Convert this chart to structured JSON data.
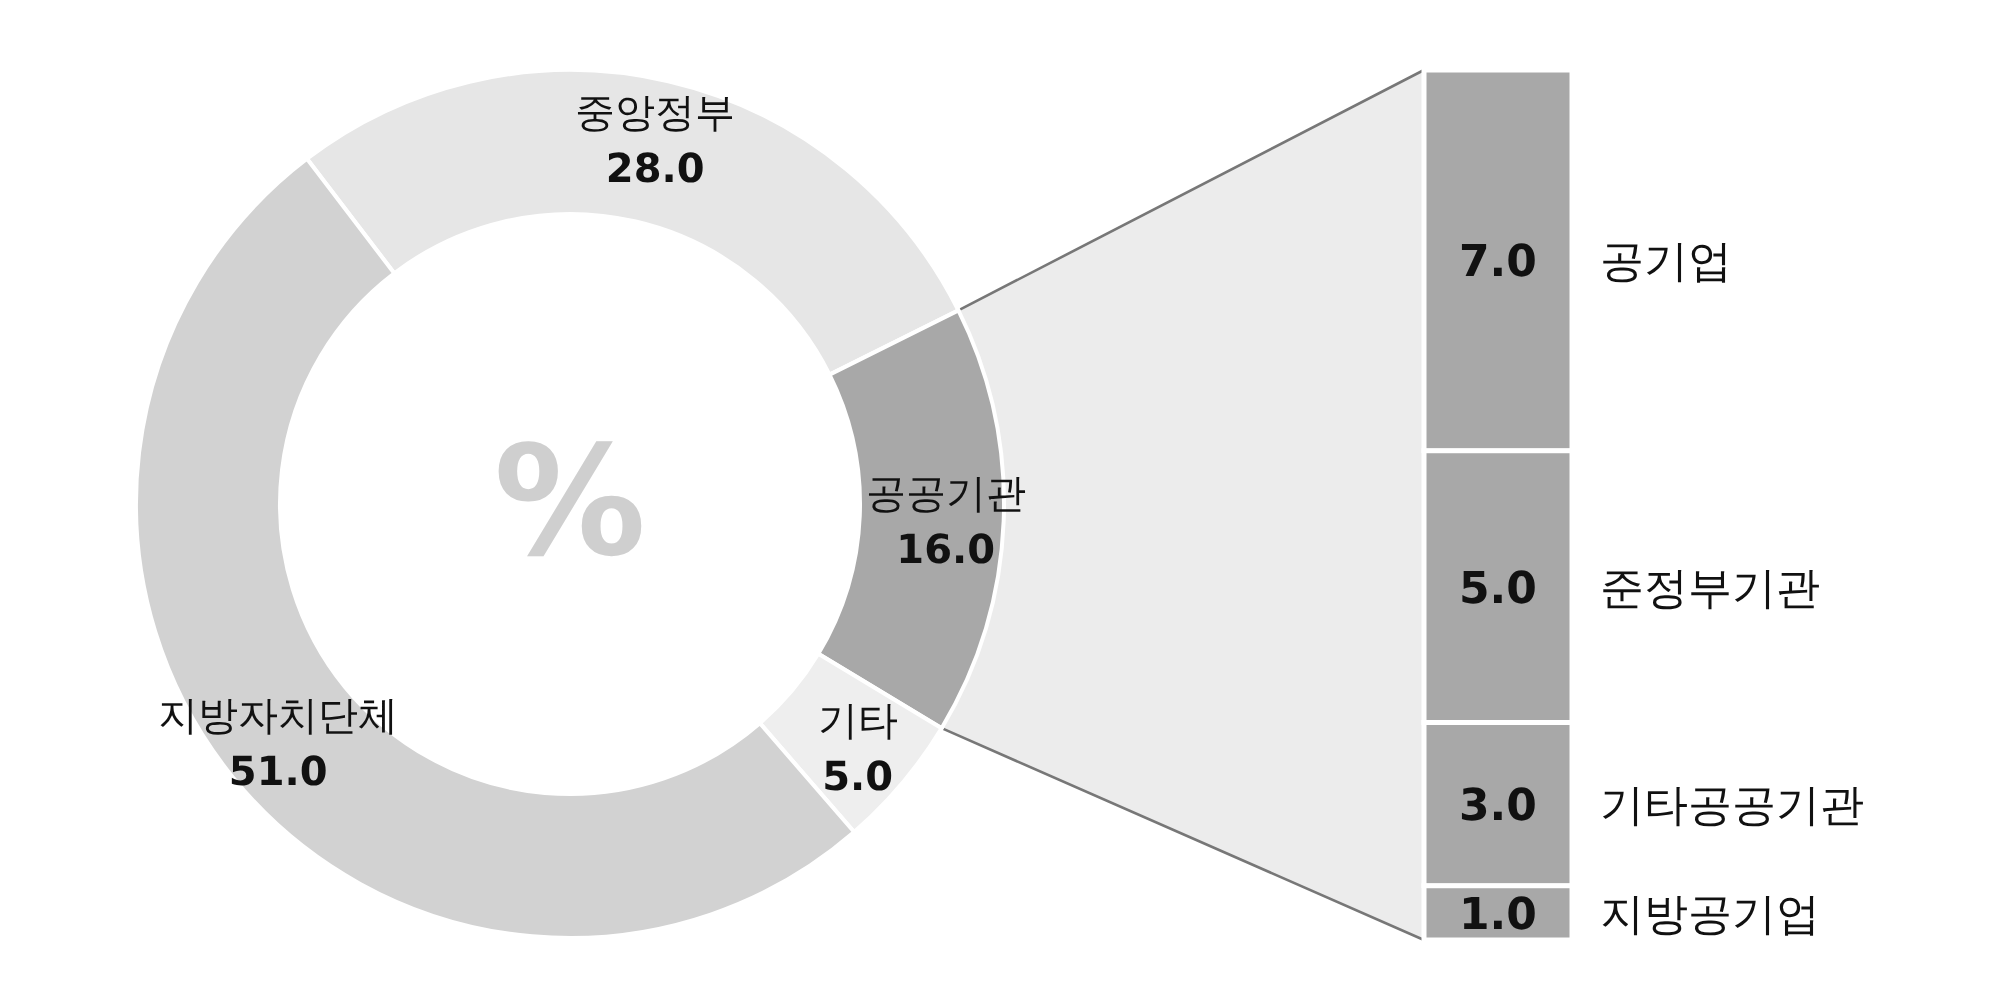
{
  "chart_data": [
    {
      "type": "donut",
      "categories": [
        "중앙정부",
        "공공기관",
        "기타",
        "지방자치단체"
      ],
      "values": [
        28.0,
        16.0,
        5.0,
        51.0
      ],
      "value_labels": [
        "28.0",
        "16.0",
        "5.0",
        "51.0"
      ],
      "colors": [
        "#e6e6e6",
        "#a8a8a8",
        "#eeeeee",
        "#d2d2d2"
      ],
      "annotations": [
        "%"
      ]
    },
    {
      "type": "bar",
      "stacked": true,
      "categories": [
        null
      ],
      "series": [
        {
          "name": "지방공기업",
          "color": "#a8a8a8",
          "values": [
            1.0
          ],
          "value_labels": [
            "1.0"
          ]
        },
        {
          "name": "기타공공기관",
          "color": "#a8a8a8",
          "values": [
            3.0
          ],
          "value_labels": [
            "3.0"
          ]
        },
        {
          "name": "준정부기관",
          "color": "#a8a8a8",
          "values": [
            5.0
          ],
          "value_labels": [
            "5.0"
          ]
        },
        {
          "name": "공기업",
          "color": "#a8a8a8",
          "values": [
            7.0
          ],
          "value_labels": [
            "7.0"
          ]
        }
      ]
    }
  ]
}
